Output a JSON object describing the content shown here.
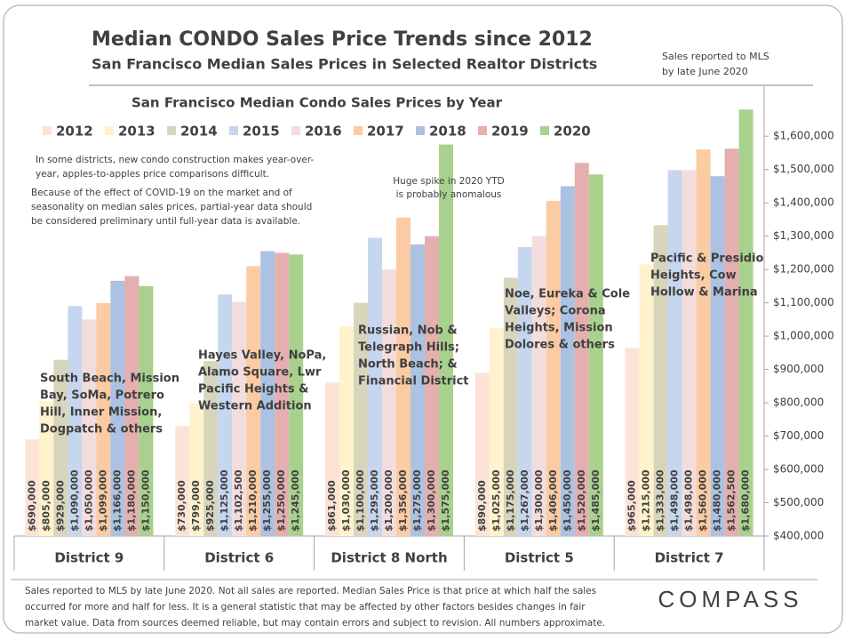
{
  "header": {
    "title": "Median CONDO Sales Price Trends since 2012",
    "subtitle": "San Francisco Median Sales Prices in Selected Realtor Districts",
    "note": [
      "Sales reported to MLS",
      "by late June 2020"
    ]
  },
  "chart_data": {
    "type": "bar",
    "title": "San Francisco Median Condo Sales Prices by Year",
    "categories": [
      "District 9",
      "District 6",
      "District 8 North",
      "District 5",
      "District 7"
    ],
    "series": [
      {
        "name": "2012",
        "color": "#fbe3d6",
        "values": [
          690000,
          730000,
          861000,
          890000,
          965000
        ],
        "value_labels": [
          "$690,000",
          "$730,000",
          "$861,000",
          "$890,000",
          "$965,000"
        ]
      },
      {
        "name": "2013",
        "color": "#fff2cc",
        "values": [
          805000,
          799000,
          1030000,
          1025000,
          1215000
        ],
        "value_labels": [
          "$805,000",
          "$799,000",
          "$1,030,000",
          "$1,025,000",
          "$1,215,000"
        ]
      },
      {
        "name": "2014",
        "color": "#d8d5bd",
        "values": [
          929000,
          925000,
          1100000,
          1175000,
          1333000
        ],
        "value_labels": [
          "$929,000",
          "$925,000",
          "$1,100,000",
          "$1,175,000",
          "$1,333,000"
        ]
      },
      {
        "name": "2015",
        "color": "#c6d6ef",
        "values": [
          1090000,
          1125000,
          1295000,
          1267000,
          1498000
        ],
        "value_labels": [
          "$1,090,000",
          "$1,125,000",
          "$1,295,000",
          "$1,267,000",
          "$1,498,000"
        ]
      },
      {
        "name": "2016",
        "color": "#f3dddc",
        "values": [
          1050000,
          1102500,
          1200000,
          1300000,
          1498000
        ],
        "value_labels": [
          "$1,050,000",
          "$1,102,500",
          "$1,200,000",
          "$1,300,000",
          "$1,498,000"
        ]
      },
      {
        "name": "2017",
        "color": "#fbcba3",
        "values": [
          1099000,
          1210000,
          1356000,
          1406000,
          1560000
        ],
        "value_labels": [
          "$1,099,000",
          "$1,210,000",
          "$1,356,000",
          "$1,406,000",
          "$1,560,000"
        ]
      },
      {
        "name": "2018",
        "color": "#abc2e2",
        "values": [
          1166000,
          1255000,
          1275000,
          1450000,
          1480000
        ],
        "value_labels": [
          "$1,166,000",
          "$1,255,000",
          "$1,275,000",
          "$1,450,000",
          "$1,480,000"
        ]
      },
      {
        "name": "2019",
        "color": "#e6afaf",
        "values": [
          1180000,
          1250000,
          1300000,
          1520000,
          1562500
        ],
        "value_labels": [
          "$1,180,000",
          "$1,250,000",
          "$1,300,000",
          "$1,520,000",
          "$1,562,500"
        ]
      },
      {
        "name": "2020",
        "color": "#a9d18e",
        "values": [
          1150000,
          1245000,
          1575000,
          1485000,
          1680000
        ],
        "value_labels": [
          "$1,150,000",
          "$1,245,000",
          "$1,575,000",
          "$1,485,000",
          "$1,680,000"
        ]
      }
    ],
    "ylim": [
      400000,
      1750000
    ],
    "yticks": [
      {
        "value": 400000,
        "label": "$400,000"
      },
      {
        "value": 500000,
        "label": "$500,000"
      },
      {
        "value": 600000,
        "label": "$600,000"
      },
      {
        "value": 700000,
        "label": "$700,000"
      },
      {
        "value": 800000,
        "label": "$800,000"
      },
      {
        "value": 900000,
        "label": "$900,000"
      },
      {
        "value": 1000000,
        "label": "$1,000,000"
      },
      {
        "value": 1100000,
        "label": "$1,100,000"
      },
      {
        "value": 1200000,
        "label": "$1,200,000"
      },
      {
        "value": 1300000,
        "label": "$1,300,000"
      },
      {
        "value": 1400000,
        "label": "$1,400,000"
      },
      {
        "value": 1500000,
        "label": "$1,500,000"
      },
      {
        "value": 1600000,
        "label": "$1,600,000"
      }
    ],
    "grid": false,
    "annotations": [
      {
        "lines": [
          "In some districts, new condo construction makes year-over-",
          "year, apples-to-apples price comparisons difficult."
        ]
      },
      {
        "lines": [
          "Because of the effect of COVID-19 on the market and of",
          "seasonality on median sales prices, partial-year data should",
          "be considered preliminary until full-year data is available."
        ]
      },
      {
        "lines": [
          "Huge spike in 2020 YTD",
          "is probably anomalous"
        ]
      },
      {
        "lines": [
          "South Beach, Mission",
          "Bay, SoMa, Potrero",
          "Hill, Inner Mission,",
          "Dogpatch & others"
        ]
      },
      {
        "lines": [
          "Hayes Valley, NoPa,",
          "Alamo Square, Lwr",
          "Pacific Heights &",
          "Western Addition"
        ]
      },
      {
        "lines": [
          "Russian, Nob &",
          "Telegraph Hills;",
          "North Beach; &",
          "Financial District"
        ]
      },
      {
        "lines": [
          "Noe, Eureka & Cole",
          "Valleys; Corona",
          "Heights, Mission",
          "Dolores & others"
        ]
      },
      {
        "lines": [
          "Pacific & Presidio",
          "Heights, Cow",
          "Hollow & Marina"
        ]
      }
    ]
  },
  "footer": {
    "lines": [
      "Sales reported to MLS by late June 2020. Not all sales are reported. Median Sales Price is that price at which half the sales",
      "occurred for more and half for less. It is a general statistic that may be affected by other factors besides changes in fair",
      "market value. Data from sources deemed reliable, but may contain errors and subject to revision.  All numbers approximate."
    ],
    "logo": "COMPASS"
  }
}
